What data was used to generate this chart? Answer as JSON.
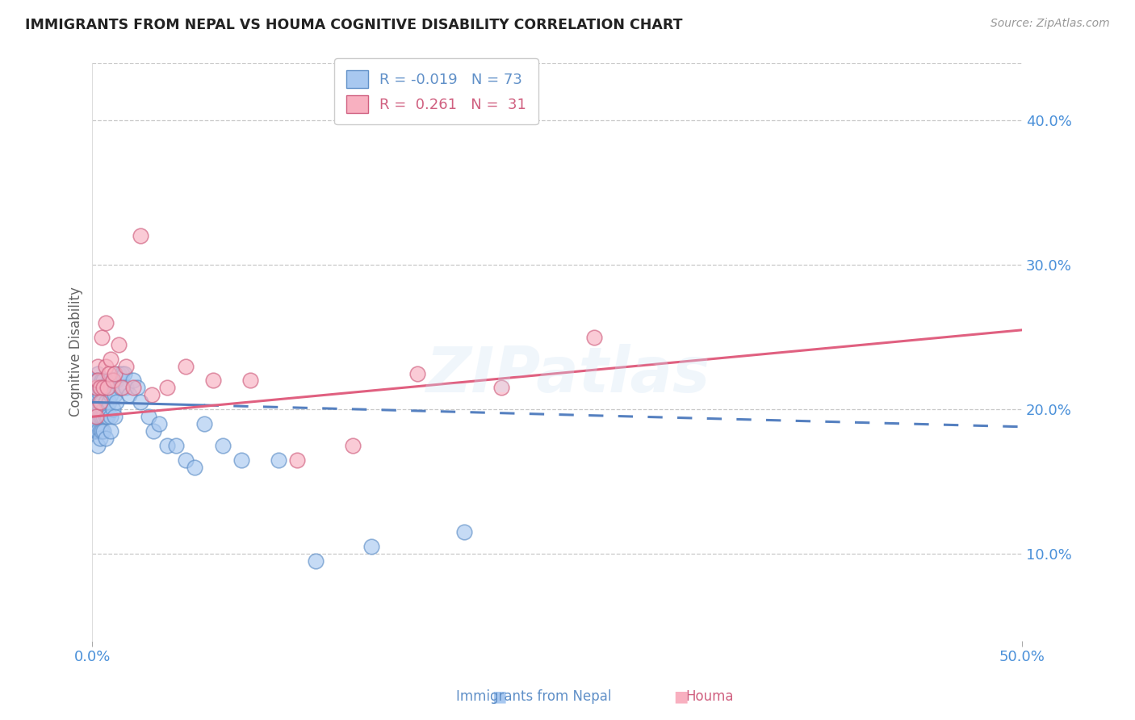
{
  "title": "IMMIGRANTS FROM NEPAL VS HOUMA COGNITIVE DISABILITY CORRELATION CHART",
  "source": "Source: ZipAtlas.com",
  "ylabel": "Cognitive Disability",
  "xlim": [
    0.0,
    0.5
  ],
  "ylim": [
    0.04,
    0.44
  ],
  "ytick_vals": [
    0.1,
    0.2,
    0.3,
    0.4
  ],
  "ytick_labels": [
    "10.0%",
    "20.0%",
    "30.0%",
    "40.0%"
  ],
  "xtick_vals": [
    0.0,
    0.5
  ],
  "xtick_labels": [
    "0.0%",
    "50.0%"
  ],
  "grid_color": "#c8c8c8",
  "background_color": "#ffffff",
  "title_color": "#222222",
  "axis_tick_color": "#4a90d9",
  "nepal_fill_color": "#a8c8f0",
  "nepal_edge_color": "#6090c8",
  "houma_fill_color": "#f8b0c0",
  "houma_edge_color": "#d06080",
  "nepal_line_color": "#5580c0",
  "houma_line_color": "#e06080",
  "legend_R_nepal": "-0.019",
  "legend_N_nepal": "73",
  "legend_R_houma": "0.261",
  "legend_N_houma": "31",
  "nepal_line_solid_end": 0.06,
  "nepal_x": [
    0.001,
    0.001,
    0.001,
    0.001,
    0.002,
    0.002,
    0.002,
    0.002,
    0.002,
    0.002,
    0.003,
    0.003,
    0.003,
    0.003,
    0.003,
    0.003,
    0.003,
    0.004,
    0.004,
    0.004,
    0.004,
    0.004,
    0.004,
    0.005,
    0.005,
    0.005,
    0.005,
    0.005,
    0.006,
    0.006,
    0.006,
    0.006,
    0.007,
    0.007,
    0.007,
    0.007,
    0.008,
    0.008,
    0.008,
    0.009,
    0.009,
    0.01,
    0.01,
    0.01,
    0.011,
    0.011,
    0.012,
    0.012,
    0.013,
    0.013,
    0.014,
    0.015,
    0.016,
    0.017,
    0.018,
    0.02,
    0.022,
    0.024,
    0.026,
    0.03,
    0.033,
    0.036,
    0.04,
    0.045,
    0.05,
    0.055,
    0.06,
    0.07,
    0.08,
    0.1,
    0.12,
    0.15,
    0.2
  ],
  "nepal_y": [
    0.195,
    0.21,
    0.2,
    0.22,
    0.2,
    0.185,
    0.215,
    0.19,
    0.205,
    0.22,
    0.195,
    0.21,
    0.185,
    0.2,
    0.225,
    0.175,
    0.22,
    0.2,
    0.185,
    0.215,
    0.195,
    0.21,
    0.18,
    0.205,
    0.195,
    0.22,
    0.185,
    0.215,
    0.2,
    0.195,
    0.185,
    0.22,
    0.215,
    0.195,
    0.205,
    0.18,
    0.2,
    0.215,
    0.195,
    0.205,
    0.22,
    0.195,
    0.21,
    0.185,
    0.2,
    0.22,
    0.195,
    0.21,
    0.205,
    0.22,
    0.225,
    0.215,
    0.225,
    0.225,
    0.215,
    0.21,
    0.22,
    0.215,
    0.205,
    0.195,
    0.185,
    0.19,
    0.175,
    0.175,
    0.165,
    0.16,
    0.19,
    0.175,
    0.165,
    0.165,
    0.095,
    0.105,
    0.115
  ],
  "houma_x": [
    0.001,
    0.002,
    0.002,
    0.003,
    0.003,
    0.004,
    0.004,
    0.005,
    0.006,
    0.007,
    0.007,
    0.008,
    0.009,
    0.01,
    0.011,
    0.012,
    0.014,
    0.016,
    0.018,
    0.022,
    0.026,
    0.032,
    0.04,
    0.05,
    0.065,
    0.085,
    0.11,
    0.14,
    0.175,
    0.22,
    0.27
  ],
  "houma_y": [
    0.2,
    0.215,
    0.195,
    0.23,
    0.22,
    0.215,
    0.205,
    0.25,
    0.215,
    0.23,
    0.26,
    0.215,
    0.225,
    0.235,
    0.22,
    0.225,
    0.245,
    0.215,
    0.23,
    0.215,
    0.32,
    0.21,
    0.215,
    0.23,
    0.22,
    0.22,
    0.165,
    0.175,
    0.225,
    0.215,
    0.25
  ],
  "nepal_trendline": {
    "x_start": 0.0,
    "x_end": 0.5,
    "y_start": 0.205,
    "y_end": 0.188
  },
  "houma_trendline": {
    "x_start": 0.0,
    "x_end": 0.5,
    "y_start": 0.195,
    "y_end": 0.255
  }
}
